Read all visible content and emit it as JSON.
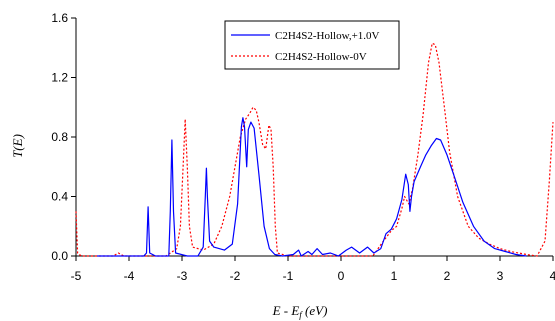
{
  "chart_data": {
    "type": "line",
    "xlabel": "E - E f (eV)",
    "xlabel_parts": {
      "main": "E - E",
      "sub": "f",
      "unit": " (eV)"
    },
    "ylabel": "T(E)",
    "xlim": [
      -5,
      4
    ],
    "ylim": [
      0,
      1.6
    ],
    "x_ticks": [
      -5,
      -4,
      -3,
      -2,
      -1,
      0,
      1,
      2,
      3,
      4
    ],
    "y_ticks": [
      0.0,
      0.4,
      0.8,
      1.2,
      1.6
    ],
    "y_tick_labels": [
      "0.0",
      "0.4",
      "0.8",
      "1.2",
      "1.6"
    ],
    "grid": false,
    "legend_position": "top-center",
    "series": [
      {
        "name": "C2H4S2-Hollow,+1.0V",
        "color": "#0000ff",
        "style": "solid",
        "points": [
          [
            -4.6,
            0
          ],
          [
            -3.72,
            0.0
          ],
          [
            -3.67,
            0.02
          ],
          [
            -3.64,
            0.33
          ],
          [
            -3.61,
            0.02
          ],
          [
            -3.5,
            0.0
          ],
          [
            -3.25,
            0.0
          ],
          [
            -3.22,
            0.3
          ],
          [
            -3.19,
            0.78
          ],
          [
            -3.16,
            0.3
          ],
          [
            -3.12,
            0.02
          ],
          [
            -2.9,
            0.0
          ],
          [
            -2.7,
            0.0
          ],
          [
            -2.6,
            0.06
          ],
          [
            -2.56,
            0.4
          ],
          [
            -2.54,
            0.59
          ],
          [
            -2.52,
            0.4
          ],
          [
            -2.48,
            0.1
          ],
          [
            -2.4,
            0.06
          ],
          [
            -2.2,
            0.04
          ],
          [
            -2.05,
            0.08
          ],
          [
            -1.95,
            0.35
          ],
          [
            -1.88,
            0.87
          ],
          [
            -1.85,
            0.93
          ],
          [
            -1.82,
            0.87
          ],
          [
            -1.78,
            0.6
          ],
          [
            -1.75,
            0.85
          ],
          [
            -1.7,
            0.9
          ],
          [
            -1.64,
            0.86
          ],
          [
            -1.55,
            0.55
          ],
          [
            -1.45,
            0.2
          ],
          [
            -1.35,
            0.05
          ],
          [
            -1.25,
            0.01
          ],
          [
            -1.1,
            0.0
          ],
          [
            -0.9,
            0.01
          ],
          [
            -0.8,
            0.04
          ],
          [
            -0.75,
            0.0
          ],
          [
            -0.62,
            0.03
          ],
          [
            -0.55,
            0.01
          ],
          [
            -0.45,
            0.05
          ],
          [
            -0.35,
            0.01
          ],
          [
            -0.2,
            0.02
          ],
          [
            -0.05,
            0.0
          ],
          [
            0.1,
            0.04
          ],
          [
            0.2,
            0.06
          ],
          [
            0.35,
            0.02
          ],
          [
            0.5,
            0.06
          ],
          [
            0.62,
            0.02
          ],
          [
            0.75,
            0.05
          ],
          [
            0.85,
            0.15
          ],
          [
            0.95,
            0.18
          ],
          [
            1.05,
            0.25
          ],
          [
            1.15,
            0.38
          ],
          [
            1.22,
            0.55
          ],
          [
            1.27,
            0.48
          ],
          [
            1.3,
            0.3
          ],
          [
            1.33,
            0.4
          ],
          [
            1.38,
            0.5
          ],
          [
            1.5,
            0.6
          ],
          [
            1.6,
            0.68
          ],
          [
            1.7,
            0.74
          ],
          [
            1.8,
            0.79
          ],
          [
            1.88,
            0.78
          ],
          [
            2.0,
            0.68
          ],
          [
            2.15,
            0.52
          ],
          [
            2.3,
            0.36
          ],
          [
            2.5,
            0.2
          ],
          [
            2.7,
            0.1
          ],
          [
            2.9,
            0.05
          ],
          [
            3.1,
            0.03
          ],
          [
            3.3,
            0.01
          ],
          [
            3.5,
            0.0
          ]
        ]
      },
      {
        "name": "C2H4S2-Hollow-0V",
        "color": "#ff0000",
        "style": "dotted",
        "points": [
          [
            -5.0,
            0.3
          ],
          [
            -4.97,
            0.02
          ],
          [
            -4.9,
            0.0
          ],
          [
            -4.3,
            0.0
          ],
          [
            -4.2,
            0.02
          ],
          [
            -4.1,
            0.0
          ],
          [
            -3.6,
            0.0
          ],
          [
            -3.3,
            0.0
          ],
          [
            -3.1,
            0.05
          ],
          [
            -3.03,
            0.2
          ],
          [
            -2.98,
            0.6
          ],
          [
            -2.94,
            0.92
          ],
          [
            -2.9,
            0.6
          ],
          [
            -2.86,
            0.2
          ],
          [
            -2.8,
            0.06
          ],
          [
            -2.6,
            0.04
          ],
          [
            -2.4,
            0.08
          ],
          [
            -2.25,
            0.2
          ],
          [
            -2.1,
            0.4
          ],
          [
            -2.0,
            0.6
          ],
          [
            -1.9,
            0.8
          ],
          [
            -1.8,
            0.92
          ],
          [
            -1.72,
            0.96
          ],
          [
            -1.66,
            1.0
          ],
          [
            -1.6,
            0.98
          ],
          [
            -1.55,
            0.9
          ],
          [
            -1.48,
            0.75
          ],
          [
            -1.42,
            0.72
          ],
          [
            -1.36,
            0.88
          ],
          [
            -1.32,
            0.85
          ],
          [
            -1.28,
            0.6
          ],
          [
            -1.24,
            0.2
          ],
          [
            -1.2,
            0.02
          ],
          [
            -1.0,
            0.0
          ],
          [
            0.6,
            0.0
          ],
          [
            0.8,
            0.1
          ],
          [
            0.95,
            0.17
          ],
          [
            1.05,
            0.2
          ],
          [
            1.15,
            0.32
          ],
          [
            1.2,
            0.4
          ],
          [
            1.28,
            0.35
          ],
          [
            1.35,
            0.45
          ],
          [
            1.45,
            0.68
          ],
          [
            1.55,
            0.95
          ],
          [
            1.65,
            1.3
          ],
          [
            1.72,
            1.43
          ],
          [
            1.78,
            1.42
          ],
          [
            1.85,
            1.3
          ],
          [
            1.95,
            1.0
          ],
          [
            2.05,
            0.7
          ],
          [
            2.2,
            0.4
          ],
          [
            2.4,
            0.2
          ],
          [
            2.6,
            0.12
          ],
          [
            2.8,
            0.08
          ],
          [
            3.0,
            0.05
          ],
          [
            3.2,
            0.03
          ],
          [
            3.5,
            0.01
          ],
          [
            3.7,
            0.0
          ],
          [
            3.85,
            0.1
          ],
          [
            3.93,
            0.5
          ],
          [
            4.0,
            0.9
          ]
        ]
      }
    ]
  }
}
